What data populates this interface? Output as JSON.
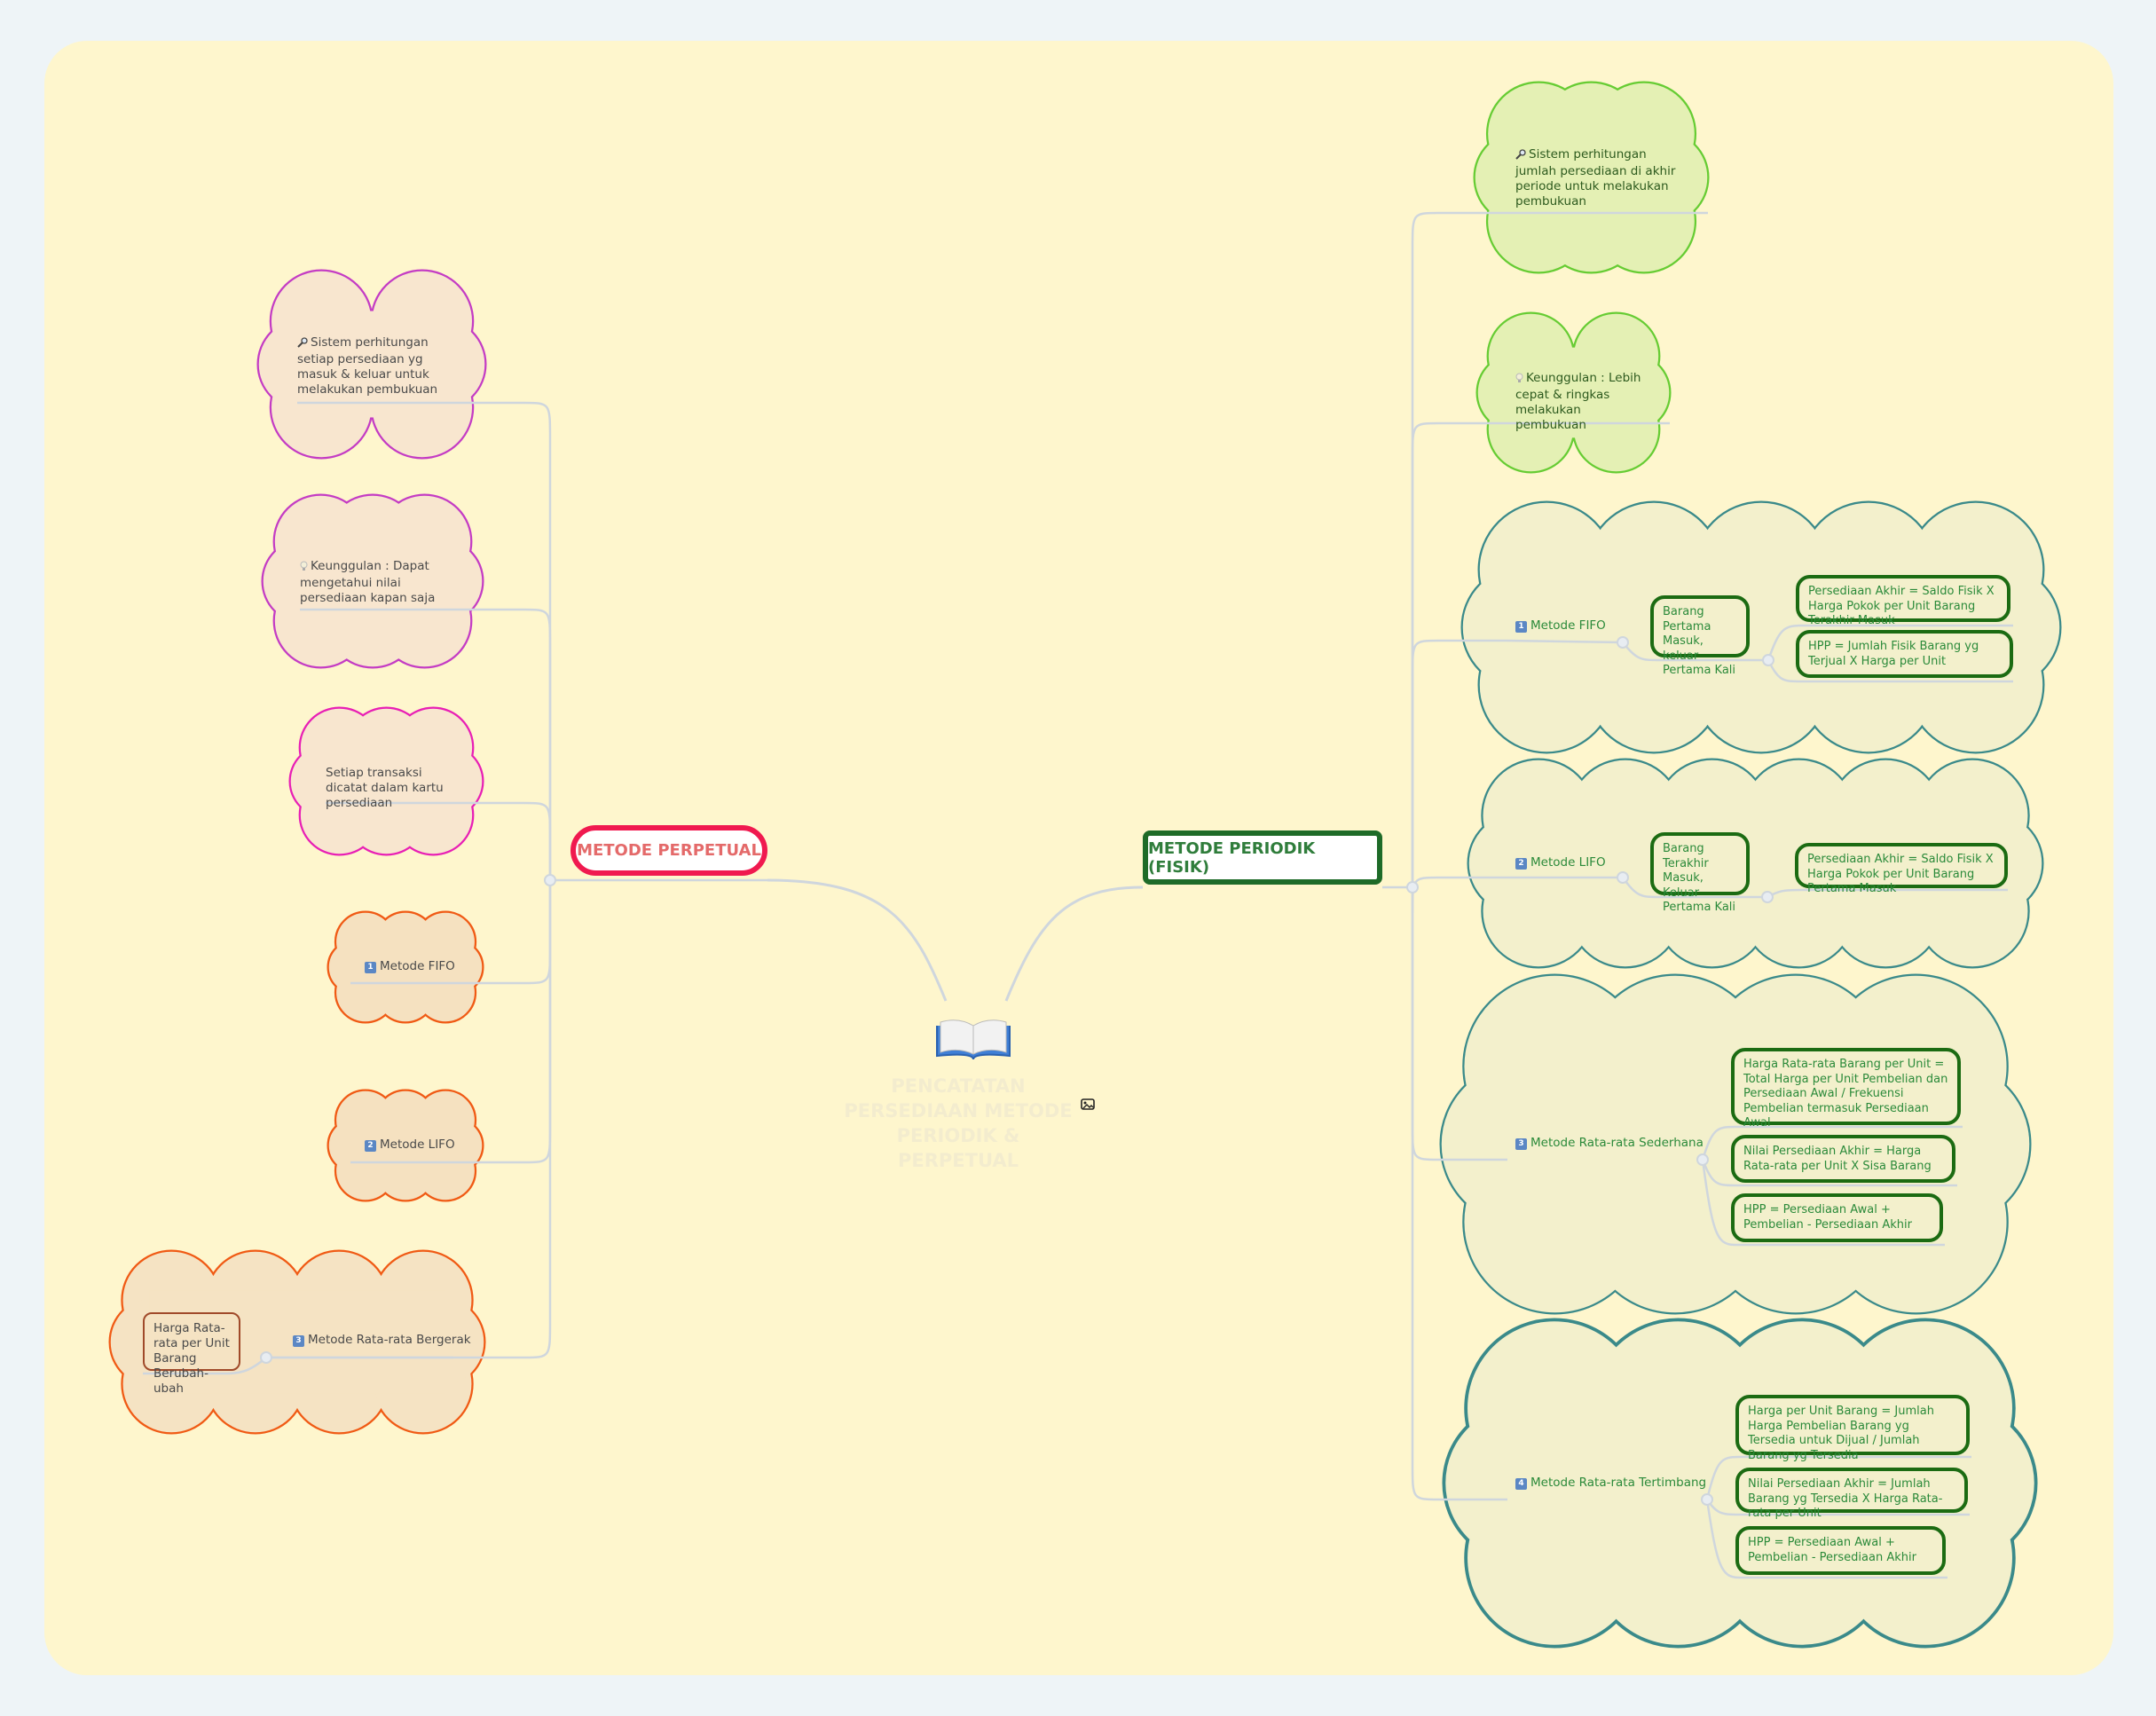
{
  "central": {
    "title": "PENCATATAN PERSEDIAAN METODE PERIODIK & PERPETUAL",
    "icon": "open-book-icon",
    "attachment_icon": "image-icon"
  },
  "left": {
    "title": "METODE PERPETUAL",
    "items": [
      {
        "icon": "magnifier-icon",
        "text": "Sistem perhitungan setiap persediaan yg masuk & keluar untuk melakukan pembukuan"
      },
      {
        "icon": "lightbulb-icon",
        "text": "Keunggulan : Dapat mengetahui nilai persediaan kapan saja"
      },
      {
        "text": "Setiap transaksi dicatat dalam kartu persediaan"
      },
      {
        "num": "1",
        "text": "Metode FIFO"
      },
      {
        "num": "2",
        "text": "Metode LIFO"
      },
      {
        "num": "3",
        "text": "Metode Rata-rata Bergerak",
        "children": [
          "Harga Rata-rata per Unit Barang Berubah-ubah"
        ]
      }
    ]
  },
  "right": {
    "title": "METODE PERIODIK (FISIK)",
    "items": [
      {
        "icon": "magnifier-icon",
        "text": "Sistem perhitungan jumlah persediaan di akhir periode untuk melakukan pembukuan"
      },
      {
        "icon": "lightbulb-icon",
        "text": "Keunggulan : Lebih cepat & ringkas melakukan pembukuan"
      },
      {
        "num": "1",
        "text": "Metode FIFO",
        "child": "Barang Pertama Masuk, keluar Pertama Kali",
        "formulas": [
          "Persediaan Akhir = Saldo Fisik X Harga Pokok per Unit Barang Terakhir Masuk",
          "HPP = Jumlah Fisik Barang yg Terjual X Harga per Unit"
        ]
      },
      {
        "num": "2",
        "text": "Metode LIFO",
        "child": "Barang Terakhir Masuk, Keluar Pertama Kali",
        "formulas": [
          "Persediaan Akhir = Saldo Fisik X Harga Pokok per Unit Barang Pertama Masuk"
        ]
      },
      {
        "num": "3",
        "text": "Metode Rata-rata Sederhana",
        "formulas": [
          "Harga Rata-rata Barang per Unit = Total Harga per Unit Pembelian dan Persediaan Awal / Frekuensi Pembelian termasuk Persediaan Awal",
          "Nilai Persediaan Akhir = Harga Rata-rata per Unit X Sisa Barang",
          "HPP = Persediaan Awal + Pembelian - Persediaan Akhir"
        ]
      },
      {
        "num": "4",
        "text": "Metode Rata-rata Tertimbang",
        "formulas": [
          "Harga per Unit Barang = Jumlah Harga Pembelian Barang yg Tersedia untuk Dijual / Jumlah Barang yg Tersedia",
          "Nilai Persediaan Akhir = Jumlah Barang yg Tersedia X Harga Rata-rata per Unit",
          "HPP = Persediaan Awal + Pembelian - Persediaan Akhir"
        ]
      }
    ]
  },
  "colors": {
    "background": "#fef6cd",
    "perpetual_border": "#f0194f",
    "periodik_border": "#1e6b28",
    "connector": "#cfd6dd"
  }
}
